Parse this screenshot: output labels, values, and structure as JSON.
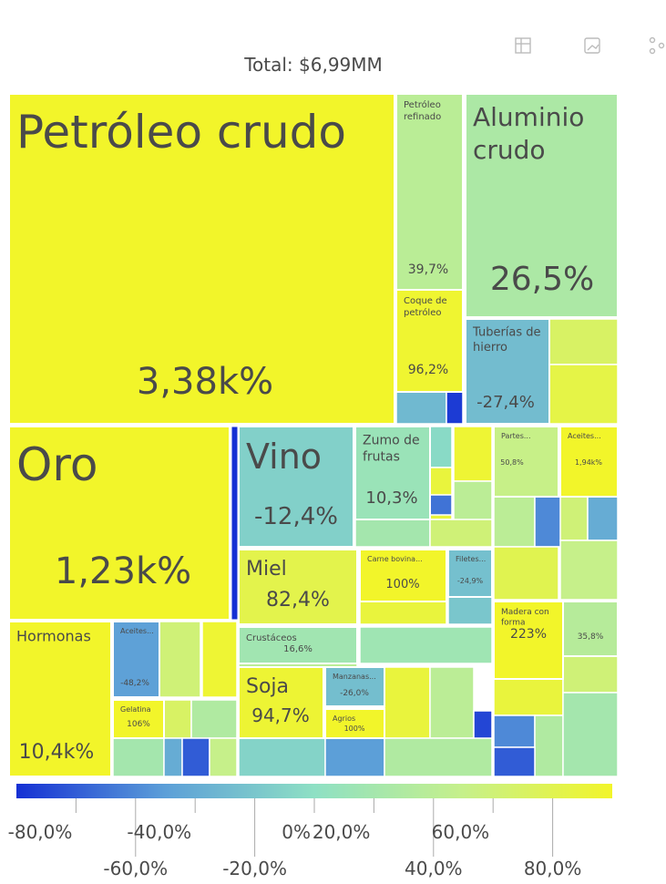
{
  "chart_data": {
    "type": "treemap",
    "title": "Total: $6,99MM",
    "categories": [
      "Petróleo crudo",
      "Petróleo refinado",
      "Coque de petróleo",
      "Aluminio crudo",
      "Tuberías de hierro",
      "Oro",
      "Vino",
      "Zumo de frutas",
      "Miel",
      "Carne bovina...",
      "Filetes...",
      "Crustáceos",
      "Hormonas",
      "Aceites...",
      "Gelatina",
      "Soja",
      "Manzanas...",
      "Agrios",
      "Partes...",
      "Aceites...",
      "Madera con forma",
      null
    ],
    "values": [
      3380,
      39.7,
      96.2,
      26.5,
      -27.4,
      1230,
      -12.4,
      10.3,
      82.4,
      100,
      -24.9,
      16.6,
      10400,
      -48.2,
      106,
      94.7,
      -26.0,
      100,
      50.8,
      1940,
      223,
      35.8
    ],
    "value_labels": [
      "3,38k%",
      "39,7%",
      "96,2%",
      "26,5%",
      "-27,4%",
      "1,23k%",
      "-12,4%",
      "10,3%",
      "82,4%",
      "100%",
      "-24,9%",
      "16,6%",
      "10,4k%",
      "-48,2%",
      "106%",
      "94,7%",
      "-26,0%",
      "100%",
      "50,8%",
      "1,94k%",
      "223%",
      "35,8%"
    ],
    "clim": [
      -100,
      100
    ],
    "colorscale": [
      "#1530d4",
      "#5c9fd8",
      "#8ee0c4",
      "#c6f08a",
      "#f2f52a"
    ],
    "cticks": [
      {
        "value": -80,
        "label": "-80,0%"
      },
      {
        "value": -60,
        "label": "-60,0%"
      },
      {
        "value": -40,
        "label": "-40,0%"
      },
      {
        "value": -20,
        "label": "-20,0%"
      },
      {
        "value": 0,
        "label": "0%"
      },
      {
        "value": 20,
        "label": "20,0%"
      },
      {
        "value": 40,
        "label": "40,0%"
      },
      {
        "value": 60,
        "label": "60,0%"
      },
      {
        "value": 80,
        "label": "80,0%"
      }
    ]
  }
}
